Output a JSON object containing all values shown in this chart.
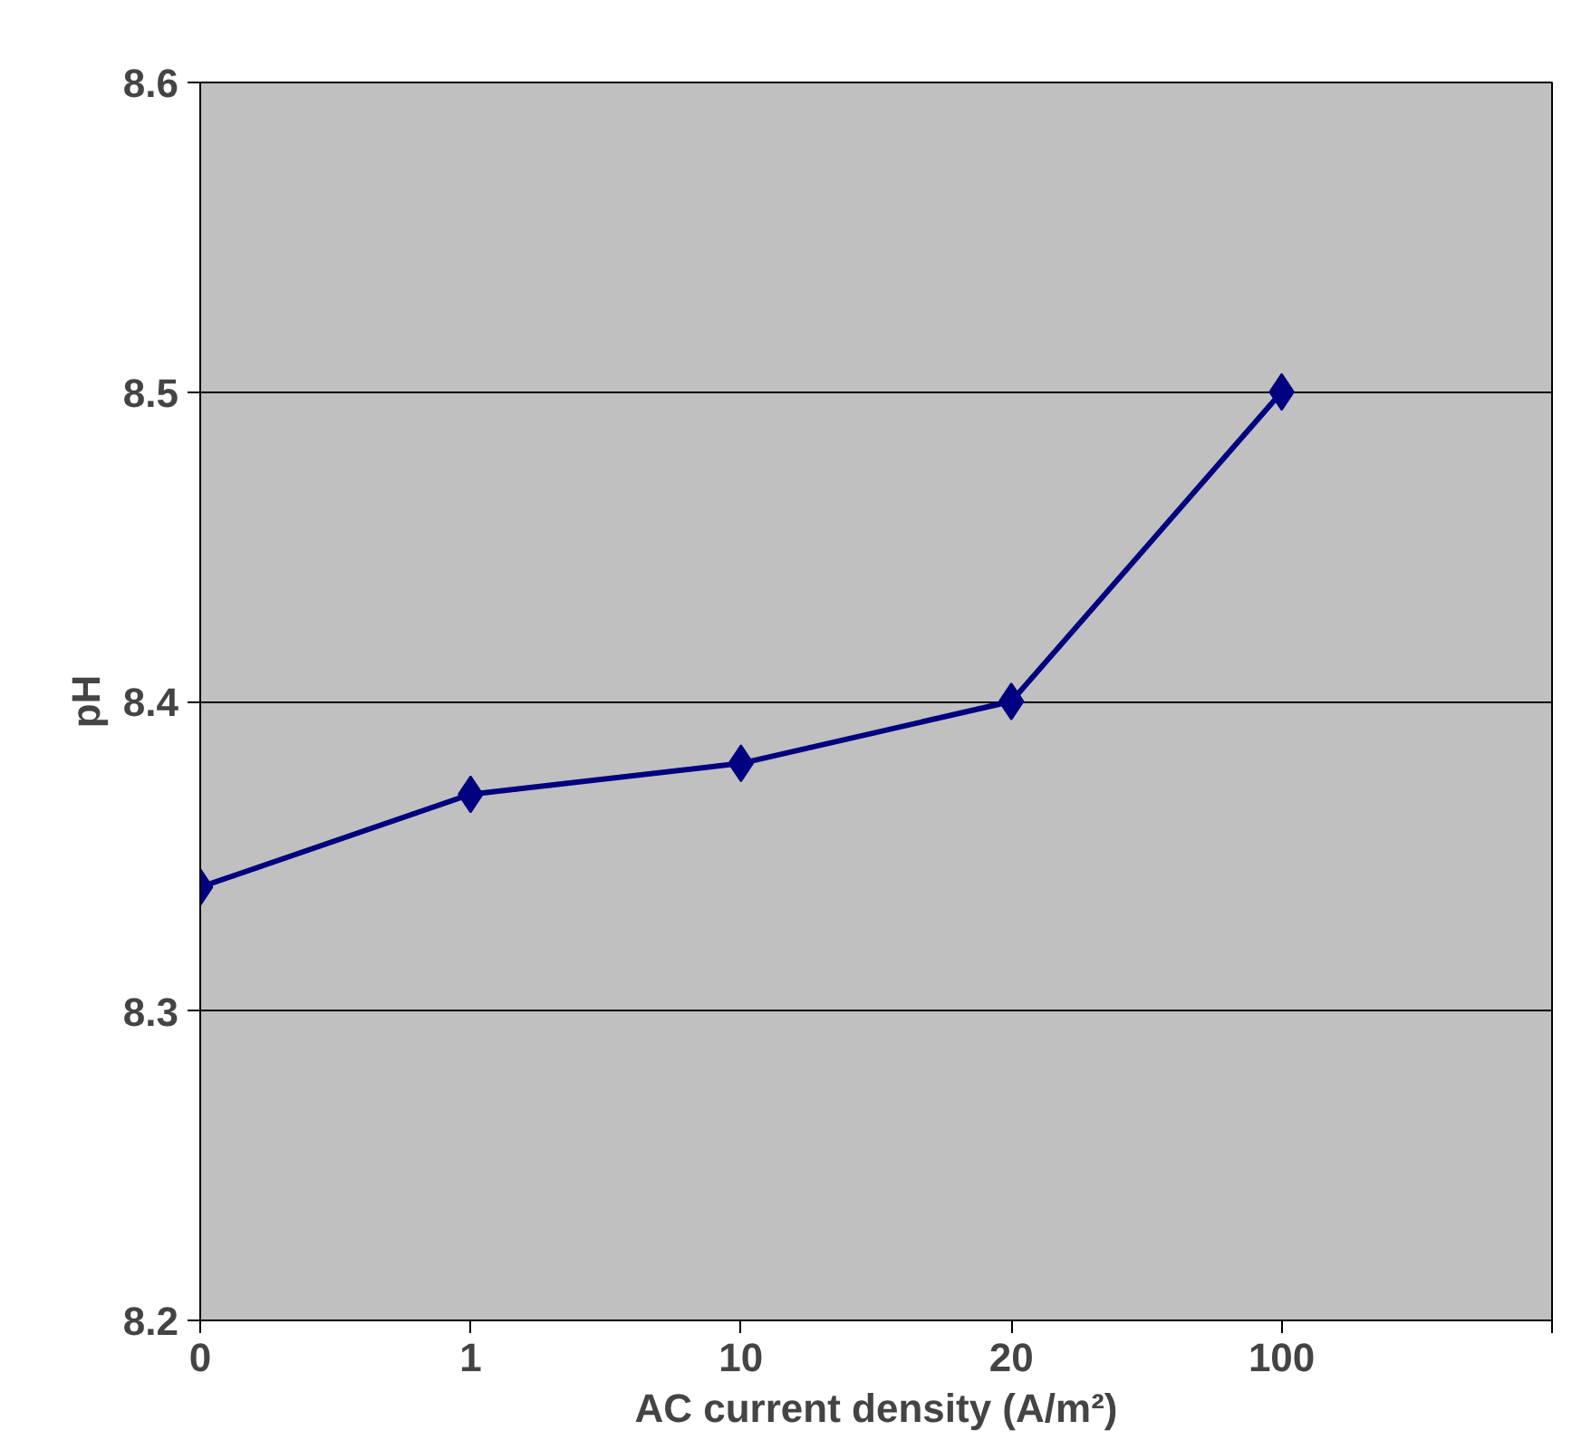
{
  "chart_data": {
    "type": "line",
    "xlabel": "AC current density (A/m²)",
    "ylabel": "pH",
    "categories": [
      "0",
      "1",
      "10",
      "20",
      "100",
      null
    ],
    "series": [
      {
        "color": "#000080",
        "values": [
          8.34,
          8.37,
          8.38,
          8.4,
          8.5,
          null
        ]
      }
    ],
    "ylim": [
      8.2,
      8.6
    ],
    "yticks": [
      8.2,
      8.3,
      8.4,
      8.5,
      8.6
    ],
    "grid": "y",
    "marker": "diamond",
    "line_style": "solid"
  }
}
